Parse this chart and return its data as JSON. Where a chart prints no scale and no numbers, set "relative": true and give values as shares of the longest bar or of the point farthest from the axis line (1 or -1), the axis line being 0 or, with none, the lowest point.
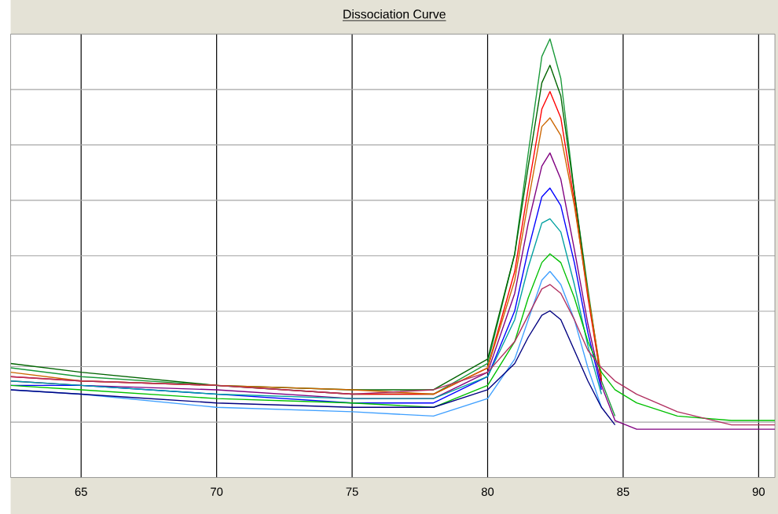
{
  "chart_data": {
    "type": "line",
    "title": "Dissociation Curve",
    "relative": true,
    "grid": true,
    "xlim": [
      62.4,
      90.6
    ],
    "xticks": [
      65,
      70,
      75,
      80,
      85,
      90
    ],
    "x": [
      62.4,
      65,
      70,
      75,
      78,
      80,
      81,
      81.5,
      82,
      82.3,
      82.7,
      83.2,
      83.7,
      84.2,
      84.7,
      85.5,
      87,
      89,
      90.6
    ],
    "series": [
      {
        "color": "#1a9a3a",
        "values": [
          0.25,
          0.23,
          0.21,
          0.19,
          0.19,
          0.26,
          0.51,
          0.74,
          0.96,
          1.0,
          0.91,
          0.65,
          0.43,
          0.22,
          0.14,
          null,
          null,
          null,
          null
        ]
      },
      {
        "color": "#006400",
        "values": [
          0.26,
          0.24,
          0.21,
          0.2,
          0.2,
          0.27,
          0.51,
          0.71,
          0.9,
          0.94,
          0.87,
          0.65,
          0.42,
          0.22,
          null,
          null,
          null,
          null,
          null
        ]
      },
      {
        "color": "#ff0000",
        "values": [
          0.23,
          0.22,
          0.21,
          0.19,
          0.19,
          0.25,
          0.47,
          0.66,
          0.84,
          0.88,
          0.82,
          0.63,
          0.41,
          0.22,
          null,
          null,
          null,
          null,
          null
        ]
      },
      {
        "color": "#cc6600",
        "values": [
          0.24,
          0.22,
          0.21,
          0.2,
          0.19,
          0.25,
          0.45,
          0.63,
          0.8,
          0.82,
          0.78,
          0.62,
          0.42,
          0.23,
          null,
          null,
          null,
          null,
          null
        ]
      },
      {
        "color": "#800080",
        "values": [
          0.22,
          0.21,
          0.2,
          0.18,
          0.18,
          0.24,
          0.42,
          0.58,
          0.71,
          0.74,
          0.68,
          0.52,
          0.35,
          0.21,
          0.13,
          0.11,
          0.11,
          0.11,
          0.11
        ]
      },
      {
        "color": "#0000ff",
        "values": [
          0.21,
          0.21,
          null,
          0.17,
          0.17,
          0.23,
          0.38,
          0.52,
          0.64,
          0.66,
          0.62,
          0.49,
          0.33,
          0.2,
          null,
          null,
          null,
          null,
          null
        ]
      },
      {
        "color": "#00a0a0",
        "values": [
          0.22,
          0.21,
          0.19,
          0.18,
          0.18,
          0.23,
          0.36,
          0.48,
          0.58,
          0.59,
          0.56,
          0.44,
          0.3,
          0.19,
          null,
          null,
          null,
          null,
          null
        ]
      },
      {
        "color": "#00c000",
        "values": [
          0.21,
          0.2,
          0.18,
          0.17,
          0.16,
          0.21,
          0.31,
          0.41,
          0.49,
          0.51,
          0.49,
          0.41,
          0.31,
          0.24,
          0.2,
          0.17,
          0.14,
          0.13,
          0.13
        ]
      },
      {
        "color": "#40a0ff",
        "values": [
          0.2,
          0.19,
          0.16,
          0.15,
          0.14,
          0.18,
          0.27,
          0.36,
          0.45,
          0.47,
          0.44,
          0.36,
          0.25,
          0.16,
          null,
          null,
          null,
          null,
          null
        ]
      },
      {
        "color": "#b03060",
        "values": [
          0.23,
          0.22,
          0.21,
          0.19,
          0.2,
          0.24,
          0.31,
          0.37,
          0.43,
          0.44,
          0.42,
          0.36,
          0.29,
          0.25,
          0.22,
          0.19,
          0.15,
          0.12,
          0.12
        ]
      },
      {
        "color": "#000080",
        "values": [
          0.2,
          0.19,
          0.17,
          0.16,
          0.16,
          0.2,
          0.26,
          0.32,
          0.37,
          0.38,
          0.36,
          0.29,
          0.22,
          0.16,
          0.12,
          null,
          null,
          null,
          null
        ]
      }
    ]
  }
}
